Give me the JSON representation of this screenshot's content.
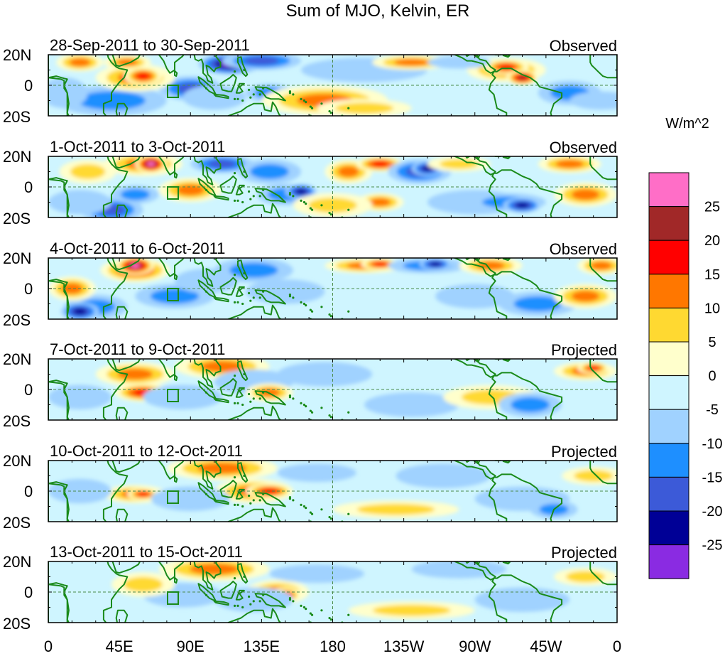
{
  "title": "Sum of MJO, Kelvin, ER",
  "colorbar": {
    "unit": "W/m^2",
    "colors": [
      "#ff6ec7",
      "#a12828",
      "#ff0000",
      "#ff7700",
      "#ffd931",
      "#ffffcc",
      "#cff5ff",
      "#a0d2ff",
      "#1e8fff",
      "#3c5ad8",
      "#000096",
      "#8a2be2"
    ],
    "labels": [
      "25",
      "20",
      "15",
      "10",
      "5",
      "0",
      "-5",
      "-10",
      "-15",
      "-20",
      "-25"
    ]
  },
  "axes": {
    "lat_labels": [
      "20N",
      "0",
      "20S"
    ],
    "lon_labels": [
      "0",
      "45E",
      "90E",
      "135E",
      "180",
      "135W",
      "90W",
      "45W",
      "0"
    ]
  },
  "panels": [
    {
      "date_range": "28-Sep-2011 to 30-Sep-2011",
      "type": "Observed"
    },
    {
      "date_range": "1-Oct-2011 to 3-Oct-2011",
      "type": "Observed"
    },
    {
      "date_range": "4-Oct-2011 to 6-Oct-2011",
      "type": "Observed"
    },
    {
      "date_range": "7-Oct-2011 to 9-Oct-2011",
      "type": "Projected"
    },
    {
      "date_range": "10-Oct-2011 to 12-Oct-2011",
      "type": "Projected"
    },
    {
      "date_range": "13-Oct-2011 to 15-Oct-2011",
      "type": "Projected"
    }
  ],
  "colors": {
    "coast": "#1a8a1a",
    "grid": "#4a8a4a",
    "border": "#000000"
  }
}
